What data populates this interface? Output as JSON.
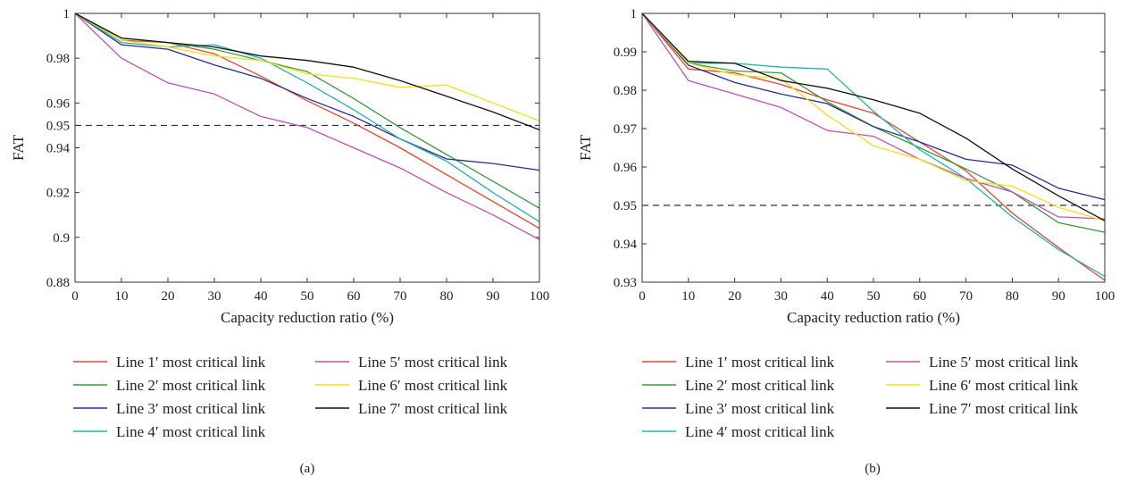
{
  "chart_data": [
    {
      "type": "line",
      "caption": "(a)",
      "title": "",
      "xlabel": "Capacity reduction ratio (%)",
      "ylabel": "FAT",
      "xlim": [
        0,
        100
      ],
      "ylim": [
        0.88,
        1.0
      ],
      "xticks": [
        0,
        10,
        20,
        30,
        40,
        50,
        60,
        70,
        80,
        90,
        100
      ],
      "yticks": [
        0.88,
        0.9,
        0.92,
        0.94,
        0.95,
        0.96,
        0.98,
        1.0
      ],
      "ytick_labels": [
        "0.88",
        "0.9",
        "0.92",
        "0.94",
        "0.95",
        "0.96",
        "0.98",
        "1"
      ],
      "reference_line": {
        "y": 0.95,
        "style": "dashed"
      },
      "grid": false,
      "legend_placement": "below",
      "x": [
        0,
        10,
        20,
        30,
        40,
        50,
        60,
        70,
        80,
        90,
        100
      ],
      "series": [
        {
          "name": "Line 1′ most critical link",
          "color": "#e8452c",
          "values": [
            1.0,
            0.988,
            0.987,
            0.982,
            0.972,
            0.961,
            0.951,
            0.94,
            0.928,
            0.916,
            0.904
          ]
        },
        {
          "name": "Line 2′ most critical link",
          "color": "#3a9a3a",
          "values": [
            1.0,
            0.989,
            0.987,
            0.984,
            0.979,
            0.974,
            0.962,
            0.949,
            0.937,
            0.925,
            0.913
          ]
        },
        {
          "name": "Line 3′ most critical link",
          "color": "#2b2b8f",
          "values": [
            1.0,
            0.986,
            0.984,
            0.977,
            0.971,
            0.962,
            0.954,
            0.944,
            0.935,
            0.933,
            0.93
          ]
        },
        {
          "name": "Line 4′ most critical link",
          "color": "#1fb5b0",
          "values": [
            1.0,
            0.987,
            0.985,
            0.986,
            0.98,
            0.969,
            0.957,
            0.944,
            0.934,
            0.92,
            0.907
          ]
        },
        {
          "name": "Line 5′ most critical link",
          "color": "#c44fb0",
          "values": [
            1.0,
            0.98,
            0.969,
            0.964,
            0.954,
            0.949,
            0.94,
            0.931,
            0.92,
            0.91,
            0.899
          ]
        },
        {
          "name": "Line 6′ most critical link",
          "color": "#f2e11a",
          "values": [
            1.0,
            0.988,
            0.985,
            0.981,
            0.979,
            0.973,
            0.971,
            0.967,
            0.968,
            0.96,
            0.952
          ]
        },
        {
          "name": "Line 7′ most critical link",
          "color": "#111111",
          "values": [
            1.0,
            0.989,
            0.987,
            0.985,
            0.981,
            0.979,
            0.976,
            0.97,
            0.963,
            0.956,
            0.948
          ]
        }
      ]
    },
    {
      "type": "line",
      "caption": "(b)",
      "title": "",
      "xlabel": "Capacity reduction ratio (%)",
      "ylabel": "FAT",
      "xlim": [
        0,
        100
      ],
      "ylim": [
        0.93,
        1.0
      ],
      "xticks": [
        0,
        10,
        20,
        30,
        40,
        50,
        60,
        70,
        80,
        90,
        100
      ],
      "yticks": [
        0.93,
        0.94,
        0.95,
        0.96,
        0.97,
        0.98,
        0.99,
        1.0
      ],
      "ytick_labels": [
        "0.93",
        "0.94",
        "0.95",
        "0.96",
        "0.97",
        "0.98",
        "0.99",
        "1"
      ],
      "reference_line": {
        "y": 0.95,
        "style": "dashed"
      },
      "grid": false,
      "legend_placement": "below",
      "x": [
        0,
        10,
        20,
        30,
        40,
        50,
        60,
        70,
        80,
        90,
        100
      ],
      "series": [
        {
          "name": "Line 1′ most critical link",
          "color": "#e8452c",
          "values": [
            1.0,
            0.9855,
            0.9845,
            0.9815,
            0.9775,
            0.974,
            0.9665,
            0.959,
            0.948,
            0.939,
            0.9305
          ]
        },
        {
          "name": "Line 2′ most critical link",
          "color": "#3a9a3a",
          "values": [
            1.0,
            0.987,
            0.985,
            0.9845,
            0.977,
            0.9705,
            0.965,
            0.9595,
            0.9535,
            0.9455,
            0.943
          ]
        },
        {
          "name": "Line 3′ most critical link",
          "color": "#2b2b8f",
          "values": [
            1.0,
            0.9865,
            0.982,
            0.979,
            0.9765,
            0.9705,
            0.9665,
            0.962,
            0.9605,
            0.9545,
            0.9515
          ]
        },
        {
          "name": "Line 4′ most critical link",
          "color": "#1fb5b0",
          "values": [
            1.0,
            0.987,
            0.987,
            0.986,
            0.9855,
            0.9745,
            0.9645,
            0.957,
            0.947,
            0.9385,
            0.9315
          ]
        },
        {
          "name": "Line 5′ most critical link",
          "color": "#c44fb0",
          "values": [
            1.0,
            0.9825,
            0.979,
            0.9755,
            0.9695,
            0.968,
            0.962,
            0.957,
            0.9535,
            0.947,
            0.9465
          ]
        },
        {
          "name": "Line 6′ most critical link",
          "color": "#f2e11a",
          "values": [
            1.0,
            0.987,
            0.984,
            0.983,
            0.9735,
            0.9655,
            0.962,
            0.9565,
            0.955,
            0.9495,
            0.946
          ]
        },
        {
          "name": "Line 7′ most critical link",
          "color": "#111111",
          "values": [
            1.0,
            0.9875,
            0.987,
            0.9825,
            0.9805,
            0.9775,
            0.974,
            0.9675,
            0.9595,
            0.9525,
            0.946
          ]
        }
      ]
    }
  ]
}
